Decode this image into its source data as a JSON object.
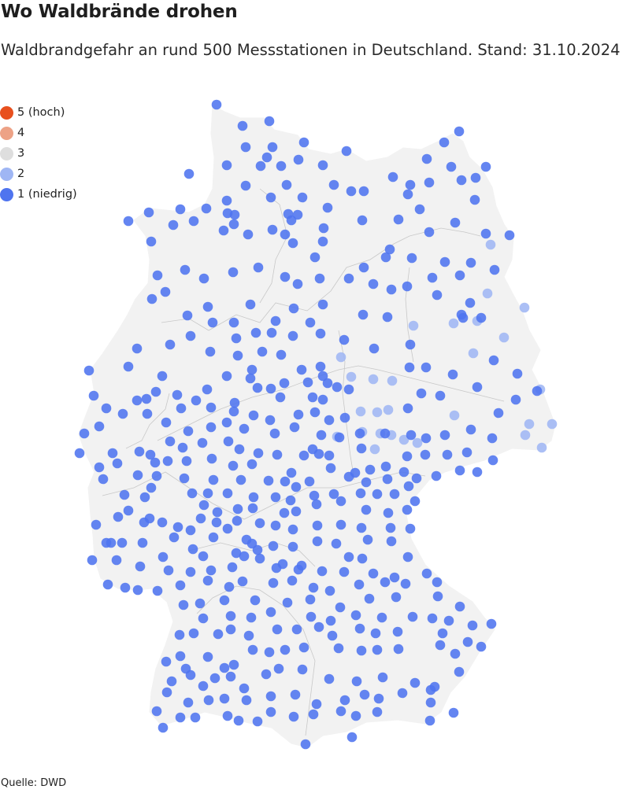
{
  "header": {
    "title": "Wo Waldbrände drohen",
    "subtitle": "Waldbrandgefahr an rund 500 Messstationen in Deutschland. Stand: 31.10.2024"
  },
  "legend": [
    {
      "label": "5 (hoch)",
      "level": 5,
      "color": "#e8501e"
    },
    {
      "label": "4",
      "level": 4,
      "color": "#eda286"
    },
    {
      "label": "3",
      "level": 3,
      "color": "#dedede"
    },
    {
      "label": "2",
      "level": 2,
      "color": "#9fb6f4"
    },
    {
      "label": "1 (niedrig)",
      "level": 1,
      "color": "#4f74ef"
    }
  ],
  "map": {
    "country_fill": "#f2f2f2",
    "border_color": "#c8c8c8"
  },
  "source": "Quelle: DWD"
}
